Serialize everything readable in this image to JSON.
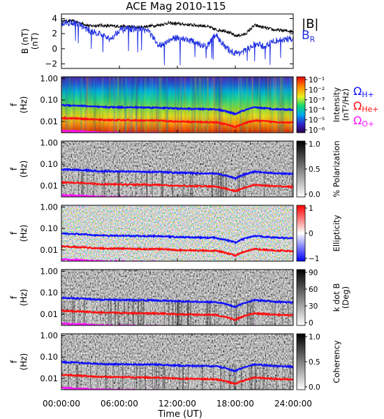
{
  "title": "ACE Mag 2010-115",
  "colors": {
    "total": "#000000",
    "radial": "#1f2fe0",
    "h_plus": "#1010ff",
    "he_plus": "#ff1010",
    "o_plus": "#ff10ff"
  },
  "x_axis": {
    "label": "Time (UT)",
    "ticks": [
      0,
      6,
      12,
      18,
      24
    ],
    "tick_labels": [
      "00:00:00",
      "06:00:00",
      "12:00:00",
      "18:00:00",
      "24:00:00"
    ],
    "range": [
      0,
      24
    ]
  },
  "freq_axis": {
    "label_top": "f",
    "label_bottom": "(Hz)",
    "scale": "log",
    "range": [
      0.003,
      1.2
    ],
    "ticks": [
      1.0,
      0.1,
      0.01
    ],
    "tick_labels": [
      "1.00",
      "0.10",
      "0.01"
    ]
  },
  "gyro_labels": {
    "h_plus": {
      "sym": "Ω",
      "sub": "H+"
    },
    "he_plus": {
      "sym": "Ω",
      "sub": "He+"
    },
    "o_plus": {
      "sym": "Ω",
      "sub": "O+"
    }
  },
  "panels": [
    {
      "key": "intensity",
      "label_line1": "Intensity",
      "label_line2": "(nT²/Hz)",
      "colormap": "rainbow",
      "ticks": [
        "10⁻¹",
        "10⁻²",
        "10⁻³",
        "10⁻⁴",
        "10⁻⁵",
        "10⁻⁶"
      ]
    },
    {
      "key": "polarization",
      "label_line1": "% Polarization",
      "label_line2": "",
      "colormap": "gray",
      "ticks": [
        "1.0",
        "0.5",
        "0.0"
      ]
    },
    {
      "key": "ellipticity",
      "label_line1": "Ellipticity",
      "label_line2": "",
      "colormap": "bwr",
      "ticks": [
        "1",
        "0",
        "−1"
      ]
    },
    {
      "key": "kdotb",
      "label_line1": "k dot B",
      "label_line2": "(Deg)",
      "colormap": "gray",
      "ticks": [
        "90",
        "60",
        "30",
        "0"
      ]
    },
    {
      "key": "coherency",
      "label_line1": "Coherency",
      "label_line2": "",
      "colormap": "gray",
      "ticks": [
        "1.0",
        "0.5",
        "0.0"
      ]
    }
  ],
  "chart_data": {
    "type": "line",
    "title": "ACE Mag 2010-115",
    "xlabel": "Time (UT)",
    "ylabel": "B (nT)",
    "ylim": [
      -2.6,
      4.6
    ],
    "yticks": [
      4,
      2,
      0,
      -2
    ],
    "legend": [
      "|B|",
      "B_R"
    ],
    "legend_placement": "right",
    "x": [
      0,
      1,
      2,
      3,
      4,
      5,
      6,
      7,
      8,
      9,
      10,
      11,
      12,
      13,
      14,
      15,
      16,
      17,
      18,
      19,
      20,
      21,
      22,
      23,
      24
    ],
    "series": [
      {
        "name": "|B|",
        "values": [
          3.6,
          3.7,
          3.4,
          3.0,
          3.1,
          3.0,
          3.0,
          2.9,
          2.8,
          3.0,
          3.1,
          3.4,
          3.3,
          3.2,
          3.1,
          3.0,
          2.5,
          2.4,
          1.7,
          1.9,
          3.1,
          2.8,
          2.5,
          2.4,
          2.3
        ]
      },
      {
        "name": "B_R",
        "values": [
          3.4,
          3.5,
          3.1,
          2.3,
          2.0,
          1.2,
          2.5,
          2.6,
          2.6,
          2.4,
          0.4,
          1.0,
          1.5,
          1.2,
          0.8,
          0.2,
          1.9,
          0.1,
          -0.6,
          -0.3,
          0.6,
          0.3,
          1.0,
          1.2,
          1.4
        ]
      }
    ],
    "gyrofrequency_hz": {
      "x": [
        0,
        2,
        4,
        6,
        8,
        10,
        12,
        14,
        16,
        18,
        20,
        22,
        24
      ],
      "h_plus": [
        0.058,
        0.054,
        0.047,
        0.046,
        0.045,
        0.044,
        0.04,
        0.038,
        0.037,
        0.022,
        0.045,
        0.038,
        0.035
      ],
      "he_plus": [
        0.0145,
        0.0135,
        0.0118,
        0.0115,
        0.0112,
        0.011,
        0.0098,
        0.0095,
        0.0092,
        0.0055,
        0.011,
        0.0095,
        0.0088
      ],
      "o_plus": [
        0.0036,
        0.0034,
        0.003,
        0.0029,
        0.0028,
        0.0028,
        0.0025,
        0.0024,
        0.0023,
        0.0014,
        0.0028,
        0.0024,
        0.0022
      ]
    }
  }
}
